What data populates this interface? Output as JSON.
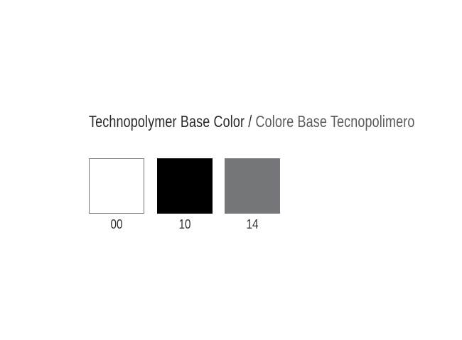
{
  "title": {
    "english": "Technopolymer Base Color",
    "separator": "/",
    "italian": "Colore Base Tecnopolimero"
  },
  "swatches": [
    {
      "code": "00",
      "color": "#ffffff"
    },
    {
      "code": "10",
      "color": "#000000"
    },
    {
      "code": "14",
      "color": "#76777b"
    }
  ]
}
